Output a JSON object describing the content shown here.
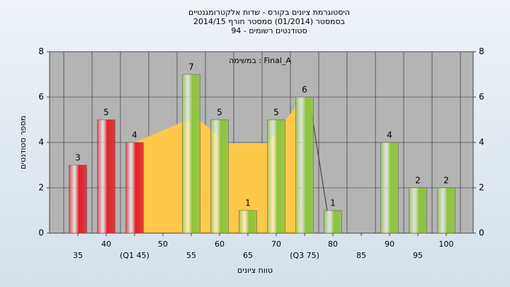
{
  "chart_data": {
    "type": "bar",
    "title": [
      "היסטוגרמת ציונים בקורס - שדות אלקטרומגנטיים",
      "בסמסטר  (01/2014)  סמסטר חורף 2014/15",
      "סטודנטים רשומים - 94"
    ],
    "annotation": "במשימה : Final_A",
    "xlabel": "טווח ציונים",
    "ylabel": "מספר סטודנטים",
    "categories": [
      "35",
      "40",
      "(Q1 45)",
      "50",
      "55",
      "60",
      "65",
      "70",
      "(Q3 75)",
      "80",
      "85",
      "90",
      "95",
      "100"
    ],
    "values": [
      3,
      5,
      4,
      0,
      7,
      5,
      1,
      5,
      6,
      1,
      0,
      4,
      2,
      2
    ],
    "colors": [
      "#e0202a",
      "#e0202a",
      "#e0202a",
      "#8cc43c",
      "#8cc43c",
      "#8cc43c",
      "#8cc43c",
      "#8cc43c",
      "#8cc43c",
      "#8cc43c",
      "#8cc43c",
      "#8cc43c",
      "#8cc43c",
      "#8cc43c"
    ],
    "ylim": [
      0,
      8
    ],
    "yticks": [
      0,
      2,
      4,
      6,
      8
    ],
    "y2lim": [
      0,
      8
    ],
    "y2ticks": [
      0,
      2,
      4,
      6,
      8
    ],
    "grid": true
  }
}
